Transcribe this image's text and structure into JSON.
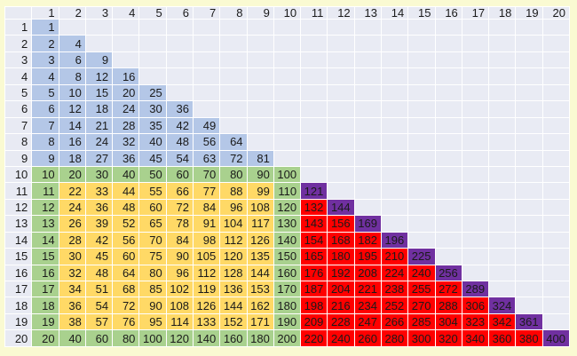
{
  "page": {
    "background_color": "#fafad2"
  },
  "palette": {
    "page_bg": "#fafad2",
    "gridline": "#ffffff",
    "header_bg": "#e8eaf3",
    "empty_bg": "#e9ebf4",
    "text": "#1a1a1a",
    "b": "#b4c7e7",
    "g": "#a9d18e",
    "y": "#ffd966",
    "r": "#ff0000",
    "p": "#7030a0"
  },
  "table": {
    "corner_label": "",
    "col_headers": [
      "1",
      "2",
      "3",
      "4",
      "5",
      "6",
      "7",
      "8",
      "9",
      "10",
      "11",
      "12",
      "13",
      "14",
      "15",
      "16",
      "17",
      "18",
      "19",
      "20"
    ],
    "rows": [
      {
        "header": "1",
        "values": [
          1
        ],
        "colors": "b"
      },
      {
        "header": "2",
        "values": [
          2,
          4
        ],
        "colors": "bb"
      },
      {
        "header": "3",
        "values": [
          3,
          6,
          9
        ],
        "colors": "bbb"
      },
      {
        "header": "4",
        "values": [
          4,
          8,
          12,
          16
        ],
        "colors": "bbbb"
      },
      {
        "header": "5",
        "values": [
          5,
          10,
          15,
          20,
          25
        ],
        "colors": "bbbbb"
      },
      {
        "header": "6",
        "values": [
          6,
          12,
          18,
          24,
          30,
          36
        ],
        "colors": "bbbbbb"
      },
      {
        "header": "7",
        "values": [
          7,
          14,
          21,
          28,
          35,
          42,
          49
        ],
        "colors": "bbbbbbb"
      },
      {
        "header": "8",
        "values": [
          8,
          16,
          24,
          32,
          40,
          48,
          56,
          64
        ],
        "colors": "bbbbbbbb"
      },
      {
        "header": "9",
        "values": [
          9,
          18,
          27,
          36,
          45,
          54,
          63,
          72,
          81
        ],
        "colors": "bbbbbbbbb"
      },
      {
        "header": "10",
        "values": [
          10,
          20,
          30,
          40,
          50,
          60,
          70,
          80,
          90,
          100
        ],
        "colors": "gggggggggg"
      },
      {
        "header": "11",
        "values": [
          11,
          22,
          33,
          44,
          55,
          66,
          77,
          88,
          99,
          110,
          121
        ],
        "colors": "gyyyyyyyygp"
      },
      {
        "header": "12",
        "values": [
          12,
          24,
          36,
          48,
          60,
          72,
          84,
          96,
          108,
          120,
          132,
          144
        ],
        "colors": "gyyyyyyyygrp"
      },
      {
        "header": "13",
        "values": [
          13,
          26,
          39,
          52,
          65,
          78,
          91,
          104,
          117,
          130,
          143,
          156,
          169
        ],
        "colors": "gyyyyyyyygrrp"
      },
      {
        "header": "14",
        "values": [
          14,
          28,
          42,
          56,
          70,
          84,
          98,
          112,
          126,
          140,
          154,
          168,
          182,
          196
        ],
        "colors": "gyyyyyyyygrrrp"
      },
      {
        "header": "15",
        "values": [
          15,
          30,
          45,
          60,
          75,
          90,
          105,
          120,
          135,
          150,
          165,
          180,
          195,
          210,
          225
        ],
        "colors": "gyyyyyyyygrrrrp"
      },
      {
        "header": "16",
        "values": [
          16,
          32,
          48,
          64,
          80,
          96,
          112,
          128,
          144,
          160,
          176,
          192,
          208,
          224,
          240,
          256
        ],
        "colors": "gyyyyyyyygrrrrrp"
      },
      {
        "header": "17",
        "values": [
          17,
          34,
          51,
          68,
          85,
          102,
          119,
          136,
          153,
          170,
          187,
          204,
          221,
          238,
          255,
          272,
          289
        ],
        "colors": "gyyyyyyyygrrrrrrp"
      },
      {
        "header": "18",
        "values": [
          18,
          36,
          54,
          72,
          90,
          108,
          126,
          144,
          162,
          180,
          198,
          216,
          234,
          252,
          270,
          288,
          306,
          324
        ],
        "colors": "gyyyyyyyygrrrrrrrp"
      },
      {
        "header": "19",
        "values": [
          19,
          38,
          57,
          76,
          95,
          114,
          133,
          152,
          171,
          190,
          209,
          228,
          247,
          266,
          285,
          304,
          323,
          342,
          361
        ],
        "colors": "gyyyyyyyygrrrrrrrrp"
      },
      {
        "header": "20",
        "values": [
          20,
          40,
          60,
          80,
          100,
          120,
          140,
          160,
          180,
          200,
          220,
          240,
          260,
          280,
          300,
          320,
          340,
          360,
          380,
          400
        ],
        "colors": "ggggggggggrrrrrrrrrp"
      }
    ]
  }
}
